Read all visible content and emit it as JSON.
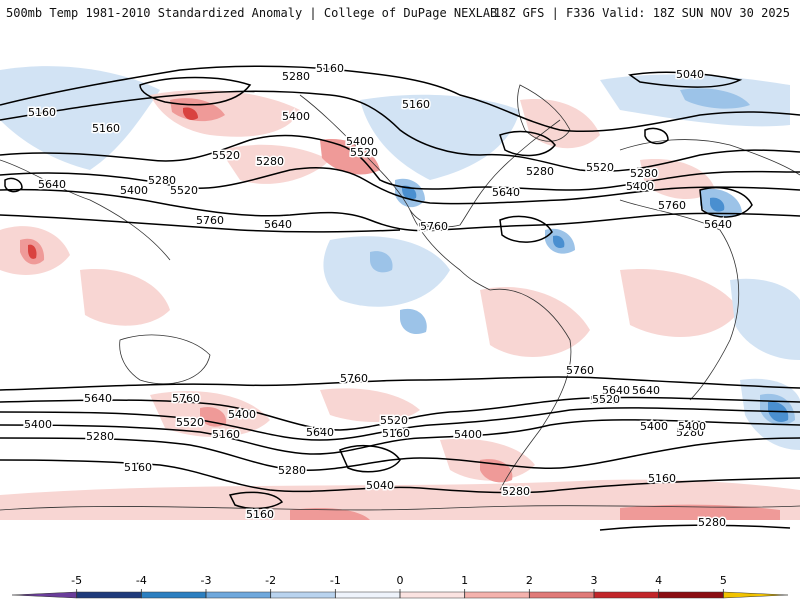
{
  "header": {
    "title": "500mb Temp 1981-2010 Standardized Anomaly | College of DuPage NEXLAB",
    "run_info": "18Z GFS | F336 Valid: 18Z SUN NOV 30 2025"
  },
  "legend": {
    "ticks": [
      "-5",
      "-4",
      "-3",
      "-2",
      "-1",
      "0",
      "1",
      "2",
      "3",
      "4",
      "5"
    ],
    "colors": [
      "#6a3d9a",
      "#1f3a7a",
      "#2c7fc0",
      "#6fa8dc",
      "#b9d3ee",
      "#eef3fb",
      "#fbe3e1",
      "#f4b2ad",
      "#e07a78",
      "#c2262a",
      "#8b0d12",
      "#f2c300"
    ]
  },
  "map": {
    "colors": {
      "warm_light": "#f8d6d3",
      "warm_mid": "#ef9a98",
      "warm_strong": "#d9423f",
      "cool_light": "#d2e3f4",
      "cool_mid": "#9cc3e8",
      "cool_strong": "#4a8fd0",
      "contour": "#000000",
      "coast": "#333333"
    },
    "contour_labels": [
      "5160",
      "5280",
      "5400",
      "5160",
      "5040",
      "5160",
      "5160",
      "5520",
      "5280",
      "5400",
      "5520",
      "5280",
      "5640",
      "5280",
      "5400",
      "5520",
      "5640",
      "5760",
      "5520",
      "5640",
      "5280",
      "5400",
      "5640",
      "5760",
      "5640",
      "5760",
      "5760",
      "5640",
      "5760",
      "5520",
      "5640",
      "5400",
      "5520",
      "5280",
      "5400",
      "5160",
      "5160",
      "5280",
      "5520",
      "5640",
      "5160",
      "5400",
      "5040",
      "5280",
      "5760",
      "5640",
      "5520",
      "5400",
      "5280",
      "5160",
      "5160",
      "5280",
      "5400"
    ]
  }
}
